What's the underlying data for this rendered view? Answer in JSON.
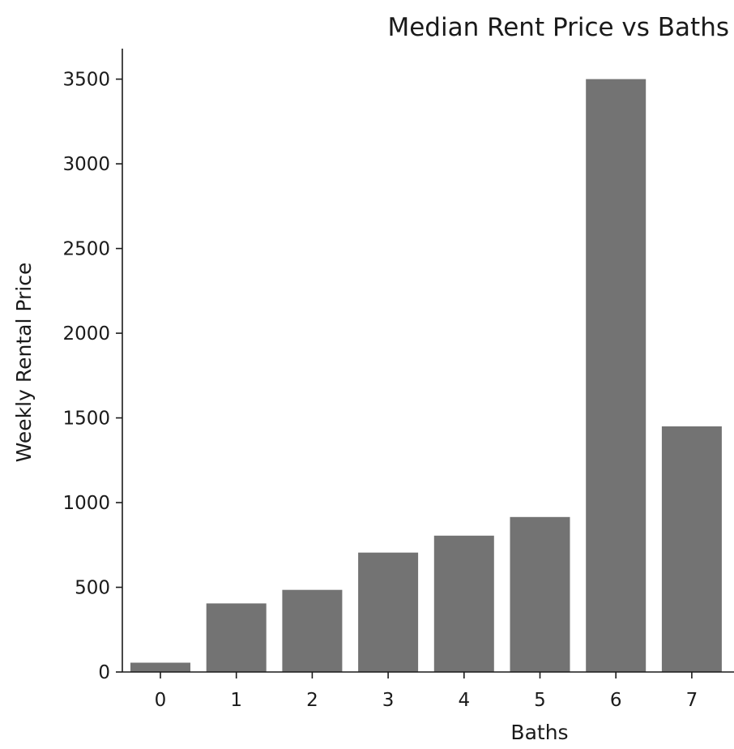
{
  "chart_data": {
    "type": "bar",
    "title": "Median Rent Price vs Baths",
    "xlabel": "Baths",
    "ylabel": "Weekly Rental Price",
    "categories": [
      "0",
      "1",
      "2",
      "3",
      "4",
      "5",
      "6",
      "7"
    ],
    "values": [
      55,
      405,
      485,
      705,
      805,
      915,
      3500,
      1450
    ],
    "ylim": [
      0,
      3680
    ],
    "yticks": [
      "0",
      "500",
      "1000",
      "1500",
      "2000",
      "2500",
      "3000",
      "3500"
    ],
    "bar_color": "#737373",
    "grid": false,
    "legend": "none"
  }
}
